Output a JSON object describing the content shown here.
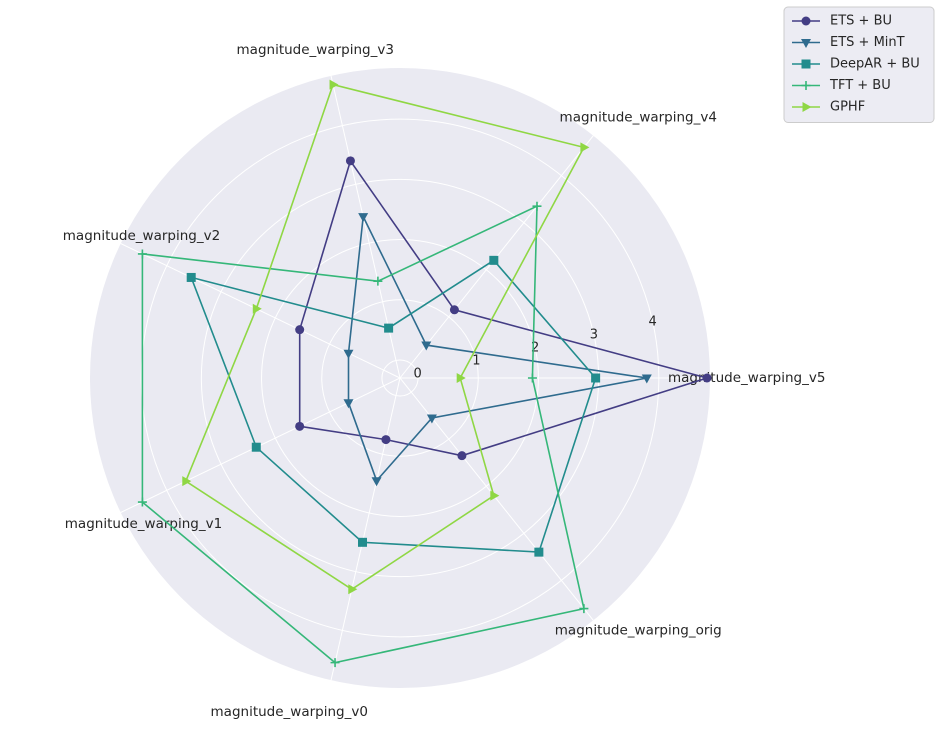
{
  "chart_data": {
    "type": "radar",
    "axes": [
      "magnitude_warping_v5",
      "magnitude_warping_v4",
      "magnitude_warping_v3",
      "magnitude_warping_v2",
      "magnitude_warping_v1",
      "magnitude_warping_v0",
      "magnitude_warping_orig"
    ],
    "radial_ticks": [
      0,
      1,
      2,
      3,
      4
    ],
    "rlim": [
      -0.3,
      4.85
    ],
    "grid": true,
    "legend_position": "top-right",
    "series": [
      {
        "name": "ETS + BU",
        "color": "#433d84",
        "marker": "circle",
        "values": [
          4.8,
          1.15,
          3.4,
          1.55,
          1.55,
          0.75,
          1.35
        ]
      },
      {
        "name": "ETS + MinT",
        "color": "#2f6b8e",
        "marker": "triangle-down",
        "values": [
          3.8,
          0.4,
          2.45,
          0.65,
          0.65,
          1.45,
          0.55
        ]
      },
      {
        "name": "DeepAR + BU",
        "color": "#228c8d",
        "marker": "square",
        "values": [
          2.95,
          2.2,
          0.55,
          3.55,
          2.35,
          2.5,
          3.4
        ]
      },
      {
        "name": "TFT + BU",
        "color": "#35b779",
        "marker": "plus",
        "values": [
          1.9,
          3.35,
          1.35,
          4.45,
          4.45,
          4.55,
          4.6
        ]
      },
      {
        "name": "GPHF",
        "color": "#8fd744",
        "marker": "triangle-right",
        "values": [
          0.7,
          4.6,
          4.7,
          2.35,
          3.65,
          3.3,
          2.2
        ]
      }
    ]
  }
}
